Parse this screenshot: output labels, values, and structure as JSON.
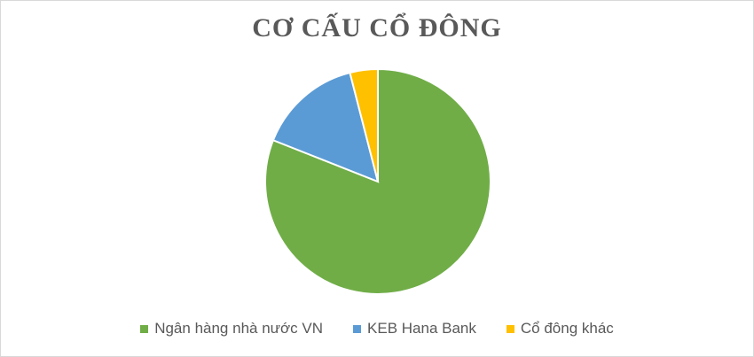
{
  "chart_data": {
    "type": "pie",
    "title": "CƠ CẤU CỔ ĐÔNG",
    "categories": [
      "Ngân hàng nhà nước VN",
      "KEB Hana Bank",
      "Cổ đông khác"
    ],
    "values": [
      81,
      15,
      4
    ],
    "colors": [
      "#70ad47",
      "#5b9bd5",
      "#ffc000"
    ],
    "legend_position": "bottom"
  }
}
